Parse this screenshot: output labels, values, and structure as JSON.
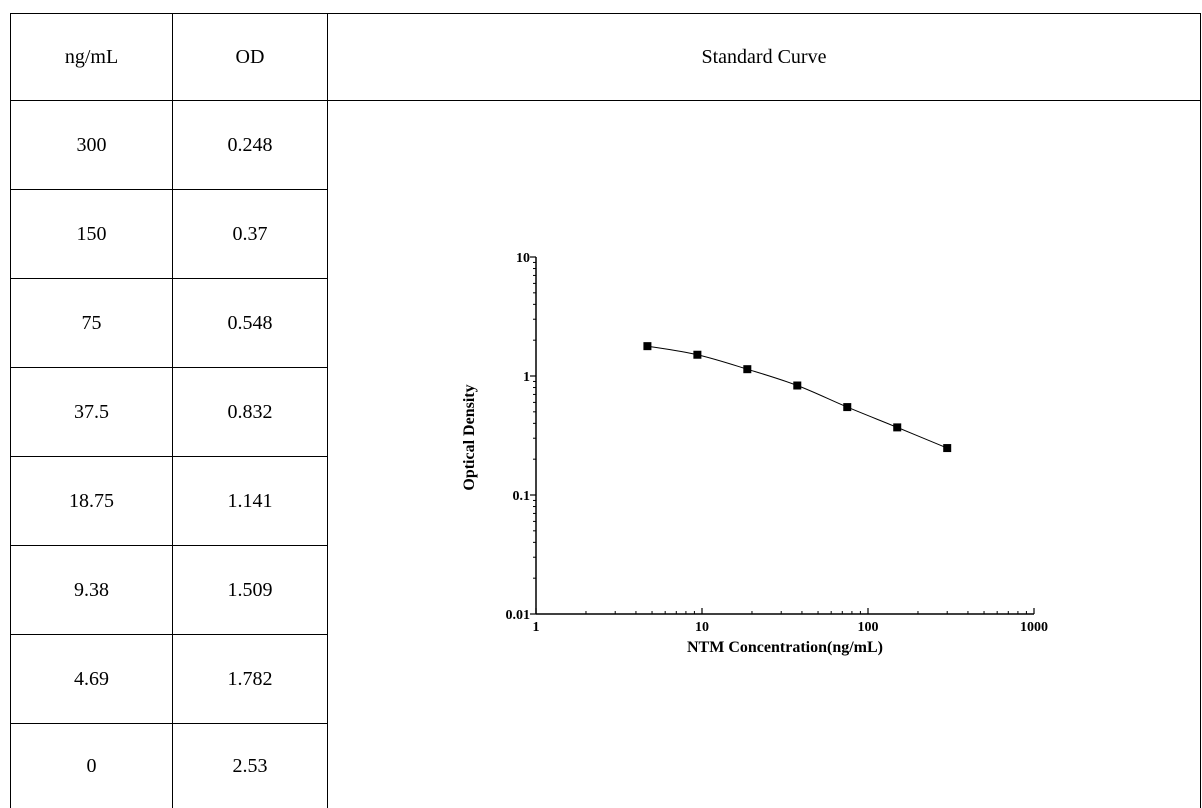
{
  "table": {
    "headers": [
      "ng/mL",
      "OD",
      "Standard Curve"
    ],
    "rows": [
      [
        "300",
        "0.248"
      ],
      [
        "150",
        "0.37"
      ],
      [
        "75",
        "0.548"
      ],
      [
        "37.5",
        "0.832"
      ],
      [
        "18.75",
        "1.141"
      ],
      [
        "9.38",
        "1.509"
      ],
      [
        "4.69",
        "1.782"
      ],
      [
        "0",
        "2.53"
      ]
    ]
  },
  "chart_data": {
    "type": "scatter",
    "title": "",
    "xlabel": "NTM Concentration(ng/mL)",
    "ylabel": "Optical Density",
    "x_scale": "log",
    "y_scale": "log",
    "xlim": [
      1,
      1000
    ],
    "ylim": [
      0.01,
      10
    ],
    "x_ticks": [
      "1",
      "10",
      "100",
      "1000"
    ],
    "y_ticks": [
      "0.01",
      "0.1",
      "1",
      "10"
    ],
    "grid": false,
    "marker": "square",
    "fit_line": true,
    "series": [
      {
        "x": [
          4.69,
          9.38,
          18.75,
          37.5,
          75,
          150,
          300
        ],
        "y": [
          1.782,
          1.509,
          1.141,
          0.832,
          0.548,
          0.37,
          0.248
        ]
      }
    ]
  }
}
